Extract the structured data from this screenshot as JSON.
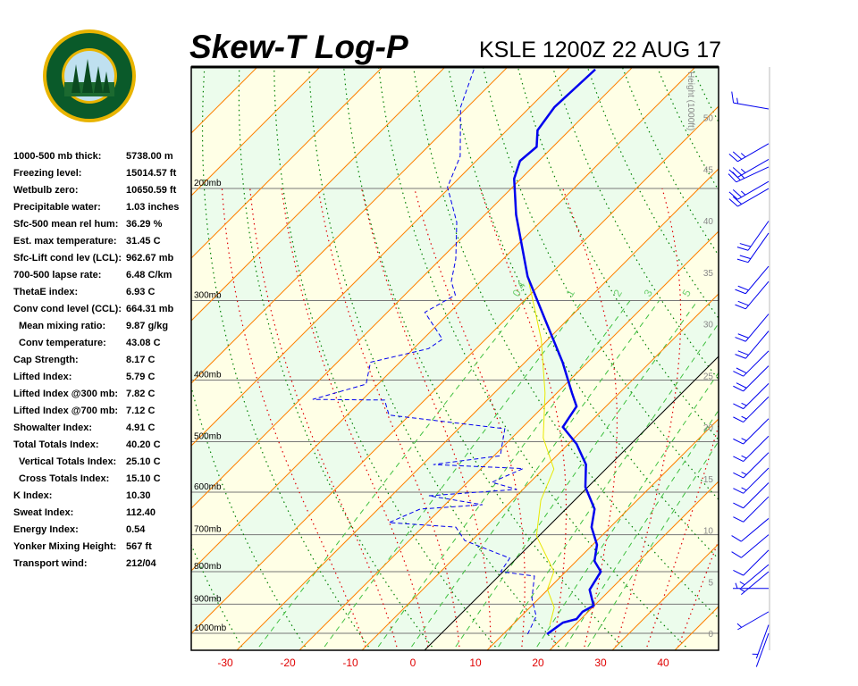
{
  "header": {
    "title": "Skew-T Log-P",
    "station": "KSLE 1200Z 22 AUG 17"
  },
  "logo": {
    "text_top": "OREGON",
    "text_bottom": "DEPARTMENT OF FORESTRY",
    "colors": {
      "ring": "#0a5a2a",
      "gold": "#e8b400"
    }
  },
  "stats": [
    {
      "k": "1000-500 mb thick:",
      "v": "5738.00 m"
    },
    {
      "k": "Freezing level:",
      "v": "15014.57 ft"
    },
    {
      "k": "Wetbulb zero:",
      "v": "10650.59 ft"
    },
    {
      "k": "Precipitable water:",
      "v": "1.03 inches"
    },
    {
      "k": "Sfc-500 mean rel hum:",
      "v": "36.29 %"
    },
    {
      "k": "Est. max temperature:",
      "v": "31.45 C"
    },
    {
      "k": "Sfc-Lift cond lev (LCL):",
      "v": "962.67 mb"
    },
    {
      "k": "700-500 lapse rate:",
      "v": "6.48 C/km"
    },
    {
      "k": "ThetaE index:",
      "v": "6.93 C"
    },
    {
      "k": "Conv cond level (CCL):",
      "v": "664.31 mb"
    },
    {
      "k": "Mean mixing ratio:",
      "v": "9.87 g/kg",
      "indent": true
    },
    {
      "k": "Conv temperature:",
      "v": "43.08 C",
      "indent": true
    },
    {
      "k": "Cap Strength:",
      "v": "8.17 C"
    },
    {
      "k": "Lifted Index:",
      "v": "5.79 C"
    },
    {
      "k": "Lifted Index @300 mb:",
      "v": "7.82 C"
    },
    {
      "k": "Lifted Index @700 mb:",
      "v": "7.12 C"
    },
    {
      "k": "Showalter Index:",
      "v": "4.91 C"
    },
    {
      "k": "Total Totals Index:",
      "v": "40.20 C"
    },
    {
      "k": "Vertical Totals Index:",
      "v": "25.10 C",
      "indent": true
    },
    {
      "k": "Cross Totals Index:",
      "v": "15.10 C",
      "indent": true
    },
    {
      "k": "K Index:",
      "v": "10.30"
    },
    {
      "k": "Sweat Index:",
      "v": "112.40"
    },
    {
      "k": "Energy Index:",
      "v": "0.54"
    },
    {
      "k": "Yonker Mixing Height:",
      "v": "567 ft"
    },
    {
      "k": "Transport wind:",
      "v": "212/04"
    }
  ],
  "chart_data": {
    "type": "line",
    "subtype": "skew-t log-p",
    "x_axis": {
      "ticks": [
        -30,
        -20,
        -10,
        0,
        10,
        20,
        30,
        40
      ],
      "range": [
        -37,
        48
      ],
      "tick_color": "#e00000"
    },
    "y_axis": {
      "scale": "log",
      "range_mb": [
        1050,
        130
      ],
      "pressure_labels": [
        {
          "p": 1000,
          "label": "1000mb"
        },
        {
          "p": 900,
          "label": "900mb"
        },
        {
          "p": 800,
          "label": "800mb"
        },
        {
          "p": 700,
          "label": "700mb"
        },
        {
          "p": 600,
          "label": "600mb"
        },
        {
          "p": 500,
          "label": "500mb"
        },
        {
          "p": 400,
          "label": "400mb"
        },
        {
          "p": 300,
          "label": "300mb"
        },
        {
          "p": 200,
          "label": "200mb"
        }
      ]
    },
    "height_axis": {
      "label": "Height (1000ft)",
      "ticks": [
        0,
        5,
        10,
        15,
        20,
        25,
        30,
        35,
        40,
        45,
        50
      ]
    },
    "mixing_ratio_labels": [
      "0.4",
      "1",
      "2",
      "3",
      "5"
    ],
    "colors": {
      "temperature": "#0000ee",
      "dewpoint": "#0000ee",
      "parcel": "#e8e800",
      "isotherm": "#ff8000",
      "dry_adiabat": "#008000",
      "moist_adiabat": "#e00000",
      "mixing_ratio": "#40c040",
      "band_yellow": "#ffffe6",
      "band_green": "#ecfcec"
    },
    "temperature": [
      [
        1003,
        17.0
      ],
      [
        962,
        17.7
      ],
      [
        950,
        19.3
      ],
      [
        925,
        19.1
      ],
      [
        905,
        19.9
      ],
      [
        854,
        16.7
      ],
      [
        800,
        15.6
      ],
      [
        770,
        12.9
      ],
      [
        726,
        10.7
      ],
      [
        681,
        7.0
      ],
      [
        638,
        4.6
      ],
      [
        589,
        -0.4
      ],
      [
        543,
        -3.9
      ],
      [
        504,
        -8.7
      ],
      [
        474,
        -13.6
      ],
      [
        440,
        -14.7
      ],
      [
        419,
        -17.6
      ],
      [
        375,
        -24.0
      ],
      [
        323,
        -33.3
      ],
      [
        275,
        -43.3
      ],
      [
        242,
        -50.0
      ],
      [
        220,
        -55.0
      ],
      [
        193,
        -61.1
      ],
      [
        181,
        -63.0
      ],
      [
        172,
        -62.6
      ],
      [
        162,
        -65.1
      ],
      [
        149,
        -66.1
      ],
      [
        130,
        -65.6
      ]
    ],
    "dewpoint": [
      [
        1003,
        13.9
      ],
      [
        940,
        12.4
      ],
      [
        882,
        8.9
      ],
      [
        813,
        5.7
      ],
      [
        800,
        -0.4
      ],
      [
        762,
        -1.1
      ],
      [
        715,
        -11.1
      ],
      [
        681,
        -14.7
      ],
      [
        670,
        -26.1
      ],
      [
        638,
        -23.3
      ],
      [
        628,
        -14.0
      ],
      [
        608,
        -24.0
      ],
      [
        594,
        -11.0
      ],
      [
        579,
        -16.1
      ],
      [
        551,
        -13.3
      ],
      [
        543,
        -28.3
      ],
      [
        526,
        -19.0
      ],
      [
        477,
        -22.6
      ],
      [
        454,
        -43.3
      ],
      [
        430,
        -46.4
      ],
      [
        429,
        -58.0
      ],
      [
        406,
        -51.9
      ],
      [
        375,
        -54.7
      ],
      [
        357,
        -47.6
      ],
      [
        345,
        -46.9
      ],
      [
        313,
        -54.0
      ],
      [
        294,
        -51.9
      ],
      [
        280,
        -54.7
      ],
      [
        258,
        -57.6
      ],
      [
        226,
        -63.3
      ],
      [
        199,
        -70.4
      ],
      [
        178,
        -73.3
      ],
      [
        149,
        -81.1
      ],
      [
        130,
        -85.0
      ]
    ],
    "parcel": [
      [
        971,
        16.0
      ],
      [
        911,
        13.9
      ],
      [
        853,
        9.9
      ],
      [
        800,
        8.1
      ],
      [
        703,
        -0.4
      ],
      [
        618,
        -5.4
      ],
      [
        552,
        -8.3
      ],
      [
        493,
        -15.0
      ],
      [
        419,
        -21.9
      ],
      [
        345,
        -31.1
      ],
      [
        294,
        -39.7
      ],
      [
        275,
        -43.3
      ]
    ],
    "wind_barbs": [
      [
        150,
        280,
        15
      ],
      [
        170,
        240,
        25
      ],
      [
        180,
        240,
        25
      ],
      [
        185,
        245,
        25
      ],
      [
        195,
        240,
        25
      ],
      [
        200,
        240,
        20
      ],
      [
        225,
        215,
        20
      ],
      [
        235,
        215,
        20
      ],
      [
        265,
        220,
        20
      ],
      [
        280,
        220,
        20
      ],
      [
        315,
        220,
        20
      ],
      [
        335,
        220,
        20
      ],
      [
        360,
        225,
        20
      ],
      [
        380,
        225,
        20
      ],
      [
        405,
        225,
        15
      ],
      [
        425,
        225,
        15
      ],
      [
        460,
        225,
        15
      ],
      [
        490,
        225,
        15
      ],
      [
        520,
        225,
        15
      ],
      [
        550,
        225,
        15
      ],
      [
        580,
        225,
        10
      ],
      [
        610,
        225,
        10
      ],
      [
        660,
        230,
        10
      ],
      [
        700,
        230,
        10
      ],
      [
        740,
        225,
        10
      ],
      [
        780,
        230,
        5
      ],
      [
        800,
        230,
        5
      ],
      [
        850,
        270,
        5
      ],
      [
        925,
        240,
        5
      ],
      [
        970,
        200,
        5
      ],
      [
        1000,
        200,
        0
      ]
    ]
  }
}
